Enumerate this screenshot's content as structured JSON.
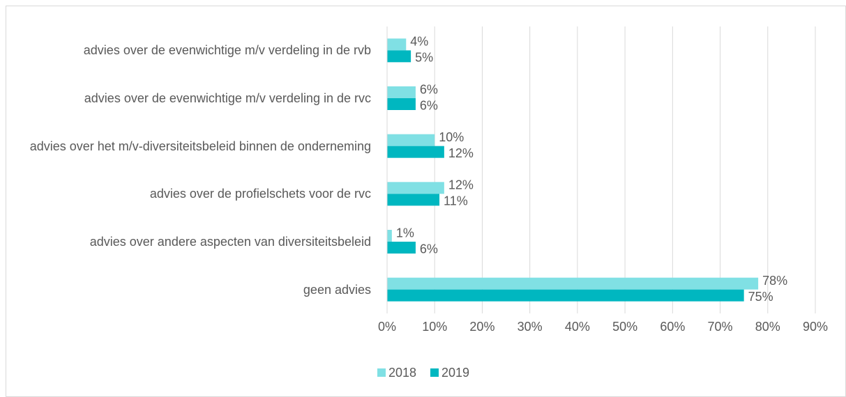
{
  "chart_data": {
    "type": "bar",
    "orientation": "horizontal",
    "categories": [
      "advies over de evenwichtige m/v verdeling in de rvb",
      "advies over de evenwichtige m/v verdeling in de rvc",
      "advies over het m/v-diversiteitsbeleid binnen de onderneming",
      "advies over de profielschets voor de rvc",
      "advies over andere aspecten van diversiteitsbeleid",
      "geen advies"
    ],
    "series": [
      {
        "name": "2018",
        "color": "#80e0e4",
        "values": [
          4,
          6,
          10,
          12,
          1,
          78
        ],
        "value_labels": [
          "4%",
          "6%",
          "10%",
          "12%",
          "1%",
          "78%"
        ]
      },
      {
        "name": "2019",
        "color": "#00b7c0",
        "values": [
          5,
          6,
          12,
          11,
          6,
          75
        ],
        "value_labels": [
          "5%",
          "6%",
          "12%",
          "11%",
          "6%",
          "75%"
        ]
      }
    ],
    "xlim": [
      0,
      90
    ],
    "xticks": [
      {
        "value": 0,
        "label": "0%"
      },
      {
        "value": 10,
        "label": "10%"
      },
      {
        "value": 20,
        "label": "20%"
      },
      {
        "value": 30,
        "label": "30%"
      },
      {
        "value": 40,
        "label": "40%"
      },
      {
        "value": 50,
        "label": "50%"
      },
      {
        "value": 60,
        "label": "60%"
      },
      {
        "value": 70,
        "label": "70%"
      },
      {
        "value": 80,
        "label": "80%"
      },
      {
        "value": 90,
        "label": "90%"
      }
    ],
    "grid": true,
    "legend": "bottom"
  }
}
